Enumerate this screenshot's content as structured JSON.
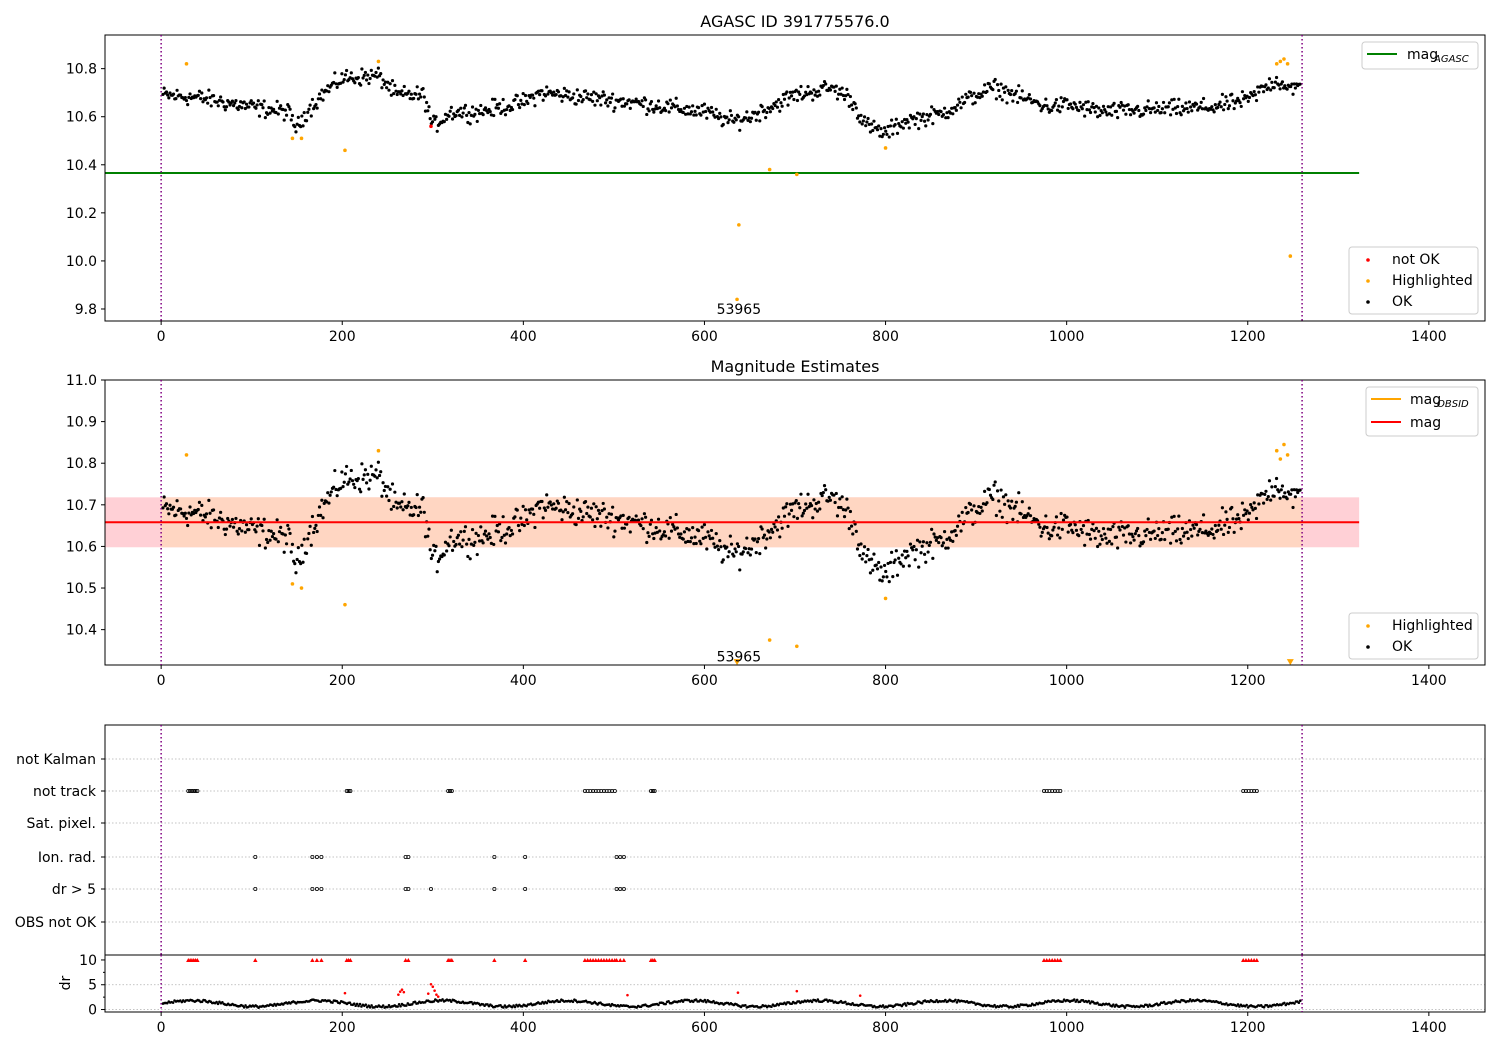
{
  "colors": {
    "ok": "#000000",
    "highlighted": "#ffa500",
    "not_ok": "#ff0000",
    "mag_agasc": "#008000",
    "mag": "#ff0000",
    "mag_obsid": "#ffa500",
    "band_outer": "#ffd0d6",
    "band_inner": "#ffd6c2",
    "vline": "#800080",
    "grid": "#b0b0b0"
  },
  "chart_data": [
    {
      "type": "scatter",
      "title": "AGASC ID 391775576.0",
      "xlim": [
        -62,
        1462
      ],
      "ylim": [
        9.75,
        10.94
      ],
      "xticks": [
        0,
        200,
        400,
        600,
        800,
        1000,
        1200,
        1400
      ],
      "yticks": [
        9.8,
        10.0,
        10.2,
        10.4,
        10.6,
        10.8
      ],
      "yticklabels": [
        "9.8",
        "10.0",
        "10.2",
        "10.4",
        "10.6",
        "10.8"
      ],
      "hlines": [
        {
          "name": "mag_AGASC",
          "y": 10.366,
          "x_range": [
            -62,
            1323
          ]
        }
      ],
      "vlines": [
        0,
        1260
      ],
      "annotation": {
        "text": "53965",
        "x": 638,
        "y": 9.8
      },
      "legend_top": [
        {
          "label": "mag",
          "sub": "AGASC",
          "kind": "line",
          "color_key": "mag_agasc"
        }
      ],
      "legend_bottom": [
        {
          "label": "not OK",
          "kind": "marker",
          "color_key": "not_ok"
        },
        {
          "label": "Highlighted",
          "kind": "marker",
          "color_key": "highlighted"
        },
        {
          "label": "OK",
          "kind": "marker",
          "color_key": "ok"
        }
      ],
      "highlighted": [
        [
          28,
          10.82
        ],
        [
          145,
          10.51
        ],
        [
          155,
          10.51
        ],
        [
          203,
          10.46
        ],
        [
          240,
          10.83
        ],
        [
          638,
          10.15
        ],
        [
          636,
          9.84
        ],
        [
          672,
          10.38
        ],
        [
          702,
          10.36
        ],
        [
          800,
          10.47
        ],
        [
          1232,
          10.82
        ],
        [
          1236,
          10.83
        ],
        [
          1240,
          10.84
        ],
        [
          1244,
          10.82
        ],
        [
          1247,
          10.02
        ]
      ],
      "not_ok": [
        [
          298,
          10.56
        ]
      ]
    },
    {
      "type": "scatter",
      "title": "Magnitude Estimates",
      "xlim": [
        -62,
        1462
      ],
      "ylim": [
        10.315,
        11.0
      ],
      "xticks": [
        0,
        200,
        400,
        600,
        800,
        1000,
        1200,
        1400
      ],
      "yticks": [
        10.4,
        10.5,
        10.6,
        10.7,
        10.8,
        10.9,
        11.0
      ],
      "yticklabels": [
        "10.4",
        "10.5",
        "10.6",
        "10.7",
        "10.8",
        "10.9",
        "11.0"
      ],
      "hlines": [
        {
          "name": "mag",
          "y": 10.658,
          "x_range": [
            -62,
            1323
          ]
        }
      ],
      "bands": [
        {
          "ymin": 10.598,
          "ymax": 10.718,
          "x_range": [
            -62,
            1323
          ]
        }
      ],
      "vlines": [
        0,
        1260
      ],
      "annotation": {
        "text": "53965",
        "x": 638,
        "y": 10.335
      },
      "legend_top": [
        {
          "label": "mag",
          "sub": "OBSID",
          "kind": "line",
          "color_key": "mag_obsid"
        },
        {
          "label": "mag",
          "kind": "line",
          "color_key": "mag"
        }
      ],
      "legend_bottom": [
        {
          "label": "Highlighted",
          "kind": "marker",
          "color_key": "highlighted"
        },
        {
          "label": "OK",
          "kind": "marker",
          "color_key": "ok"
        }
      ],
      "highlighted": [
        [
          28,
          10.82
        ],
        [
          145,
          10.51
        ],
        [
          155,
          10.5
        ],
        [
          203,
          10.46
        ],
        [
          240,
          10.83
        ],
        [
          672,
          10.375
        ],
        [
          702,
          10.36
        ],
        [
          800,
          10.475
        ],
        [
          1232,
          10.83
        ],
        [
          1236,
          10.81
        ],
        [
          1240,
          10.845
        ],
        [
          1244,
          10.82
        ]
      ],
      "triangles": [
        [
          636,
          10.322
        ],
        [
          1247,
          10.322
        ]
      ]
    },
    {
      "type": "scatter",
      "title": "",
      "xlim": [
        -62,
        1462
      ],
      "categories": [
        "not Kalman",
        "not track",
        "Sat. pixel.",
        "Ion. rad.",
        "dr > 5",
        "OBS not OK"
      ],
      "vlines": [
        0,
        1260
      ],
      "not_track_x": [
        30,
        32,
        34,
        36,
        38,
        40,
        205,
        207,
        209,
        317,
        319,
        321,
        468,
        471,
        474,
        477,
        480,
        483,
        486,
        489,
        492,
        495,
        498,
        501,
        541,
        543,
        545,
        975,
        978,
        981,
        984,
        987,
        990,
        993,
        1195,
        1198,
        1201,
        1204,
        1207,
        1210
      ],
      "ion_rad_x": [
        104,
        167,
        172,
        177,
        270,
        273,
        368,
        402,
        503,
        507,
        511
      ],
      "dr5_x": [
        104,
        167,
        172,
        177,
        270,
        273,
        298,
        368,
        402,
        503,
        507,
        511
      ],
      "marker10_x": [
        30,
        32,
        34,
        36,
        38,
        40,
        104,
        167,
        172,
        177,
        205,
        207,
        209,
        270,
        273,
        317,
        319,
        321,
        368,
        402,
        468,
        471,
        474,
        477,
        480,
        483,
        486,
        489,
        492,
        495,
        498,
        501,
        503,
        507,
        511,
        541,
        543,
        545,
        975,
        978,
        981,
        984,
        987,
        990,
        993,
        1195,
        1198,
        1201,
        1204,
        1207,
        1210
      ]
    },
    {
      "type": "scatter",
      "ylabel": "dr",
      "xlim": [
        -62,
        1462
      ],
      "ylim": [
        -0.5,
        11.0
      ],
      "yticks": [
        0,
        5,
        10
      ],
      "yticklabels": [
        "0",
        "5",
        "10"
      ],
      "xticks": [
        0,
        200,
        400,
        600,
        800,
        1000,
        1200,
        1400
      ],
      "vlines": [
        0,
        1260
      ],
      "red_points": [
        [
          203,
          3.3
        ],
        [
          262,
          3.0
        ],
        [
          264,
          3.6
        ],
        [
          266,
          4.0
        ],
        [
          268,
          3.5
        ],
        [
          295,
          3.2
        ],
        [
          298,
          5.1
        ],
        [
          300,
          4.6
        ],
        [
          302,
          3.8
        ],
        [
          304,
          3.0
        ],
        [
          306,
          2.6
        ],
        [
          515,
          2.9
        ],
        [
          637,
          3.4
        ],
        [
          702,
          3.7
        ],
        [
          772,
          2.8
        ]
      ]
    }
  ]
}
